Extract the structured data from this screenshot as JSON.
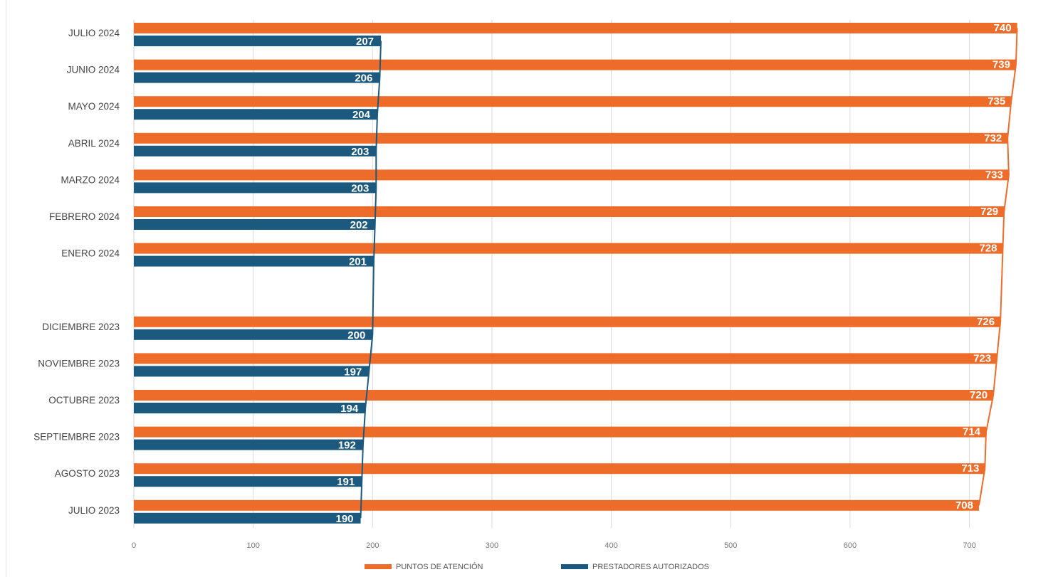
{
  "chart_data": {
    "type": "bar",
    "orientation": "horizontal",
    "categories": [
      "JULIO 2024",
      "JUNIO 2024",
      "MAYO 2024",
      "ABRIL 2024",
      "MARZO 2024",
      "FEBRERO 2024",
      "ENERO 2024",
      "",
      "DICIEMBRE 2023",
      "NOVIEMBRE 2023",
      "OCTUBRE 2023",
      "SEPTIEMBRE 2023",
      "AGOSTO 2023",
      "JULIO 2023"
    ],
    "series": [
      {
        "name": "PUNTOS DE ATENCIÓN",
        "color": "#ee6c2a",
        "values": [
          740,
          739,
          735,
          732,
          733,
          729,
          728,
          null,
          726,
          723,
          720,
          714,
          713,
          708
        ]
      },
      {
        "name": "PRESTADORES AUTORIZADOS",
        "color": "#1b5a7e",
        "values": [
          207,
          206,
          204,
          203,
          203,
          202,
          201,
          null,
          200,
          197,
          194,
          192,
          191,
          190
        ]
      }
    ],
    "x_ticks": [
      "0",
      "100",
      "200",
      "300",
      "400",
      "500",
      "600",
      "700"
    ],
    "xlim": [
      0,
      750
    ],
    "grid": "vertical",
    "legend_position": "bottom-center",
    "data_labels": true,
    "trend_lines": true,
    "title": "",
    "xlabel": "",
    "ylabel": ""
  }
}
